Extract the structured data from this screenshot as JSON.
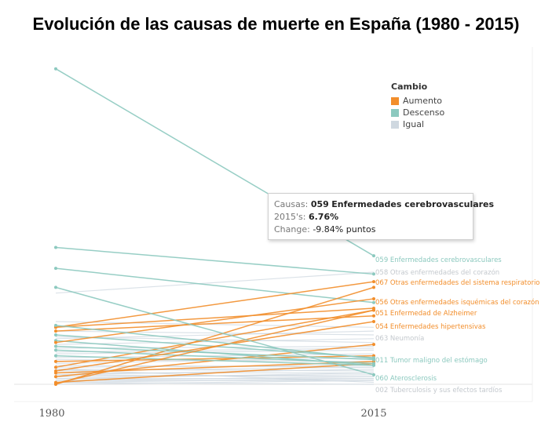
{
  "title": "Evolución de las causas de  muerte en España (1980 - 2015)",
  "legend": {
    "title": "Cambio",
    "items": [
      {
        "label": "Aumento",
        "color": "#f28e2b"
      },
      {
        "label": "Descenso",
        "color": "#8cc9bf"
      },
      {
        "label": "Igual",
        "color": "#cfd8e0"
      }
    ]
  },
  "tooltip": {
    "cause_label": "Causas:",
    "cause_code": "059",
    "cause_name": "Enfermedades cerebrovasculares",
    "value_label": "2015's:",
    "value": "6.76%",
    "change_label": "Change:",
    "change": "-9.84% puntos"
  },
  "chart_data": {
    "type": "line",
    "x": [
      "1980",
      "2015"
    ],
    "ylim": [
      0,
      17
    ],
    "grid": false,
    "legend_position": "top-right",
    "series": [
      {
        "name": "059 Enfermedades cerebrovasculares",
        "values": [
          16.6,
          6.76
        ],
        "change": "Descenso",
        "label_2015": "059  Enfermedades cerebrovasculares"
      },
      {
        "name": "058 Otras enfermedades del corazón",
        "values": [
          4.8,
          5.9
        ],
        "change": "Igual",
        "label_2015": "058  Otras enfermedades del corazón"
      },
      {
        "name": "067 Otras enfermedades del sistema respiratorio",
        "values": [
          3.0,
          5.4
        ],
        "change": "Aumento",
        "label_2015": "067  Otras enfermedades del sistema respiratorio"
      },
      {
        "name": "056 Otras enfermedades isquémicas del corazón",
        "values": [
          2.2,
          4.5
        ],
        "change": "Aumento",
        "label_2015": "056  Otras enfermedades isquémicas del corazón"
      },
      {
        "name": "051 Enfermedad de Alzheimer",
        "values": [
          0.05,
          3.9
        ],
        "change": "Aumento",
        "label_2015": "051  Enfermedad de Alzheimer"
      },
      {
        "name": "054 Enfermedades hipertensivas",
        "values": [
          0.7,
          3.3
        ],
        "change": "Aumento",
        "label_2015": "054  Enfermedades hipertensivas"
      },
      {
        "name": "063 Neumonía",
        "values": [
          2.4,
          2.8
        ],
        "change": "Igual",
        "label_2015": "063  Neumonía"
      },
      {
        "name": "011 Tumor maligno del estómago",
        "values": [
          3.1,
          1.35
        ],
        "change": "Descenso",
        "label_2015": "011  Tumor maligno del estómago"
      },
      {
        "name": "060 Aterosclerosis",
        "values": [
          5.1,
          0.5
        ],
        "change": "Descenso",
        "label_2015": "060  Aterosclerosis"
      },
      {
        "name": "002 Tuberculosis y sus efectos tardíos",
        "values": [
          0.8,
          0.1
        ],
        "change": "Igual",
        "label_2015": "002  Tuberculosis y sus efectos tardíos"
      }
    ],
    "other_lines": [
      {
        "values": [
          7.2,
          5.8
        ],
        "change": "Descenso"
      },
      {
        "values": [
          6.1,
          4.3
        ],
        "change": "Descenso"
      },
      {
        "values": [
          3.0,
          4.0
        ],
        "change": "Aumento"
      },
      {
        "values": [
          2.8,
          3.6
        ],
        "change": "Aumento"
      },
      {
        "values": [
          0.9,
          3.9
        ],
        "change": "Aumento"
      },
      {
        "values": [
          0.4,
          2.1
        ],
        "change": "Aumento"
      },
      {
        "values": [
          1.2,
          1.5
        ],
        "change": "Aumento"
      },
      {
        "values": [
          0.1,
          1.1
        ],
        "change": "Aumento"
      },
      {
        "values": [
          0.0,
          5.1
        ],
        "change": "Aumento"
      },
      {
        "values": [
          0.6,
          1.2
        ],
        "change": "Aumento"
      },
      {
        "values": [
          2.3,
          1.0
        ],
        "change": "Descenso"
      },
      {
        "values": [
          2.0,
          1.3
        ],
        "change": "Descenso"
      },
      {
        "values": [
          1.8,
          1.1
        ],
        "change": "Descenso"
      },
      {
        "values": [
          2.6,
          1.4
        ],
        "change": "Descenso"
      },
      {
        "values": [
          1.5,
          1.0
        ],
        "change": "Descenso"
      },
      {
        "values": [
          2.8,
          2.6
        ],
        "change": "Igual"
      },
      {
        "values": [
          2.5,
          2.2
        ],
        "change": "Igual"
      },
      {
        "values": [
          1.7,
          1.9
        ],
        "change": "Igual"
      },
      {
        "values": [
          1.4,
          1.6
        ],
        "change": "Igual"
      },
      {
        "values": [
          1.3,
          1.2
        ],
        "change": "Igual"
      },
      {
        "values": [
          1.1,
          1.4
        ],
        "change": "Igual"
      },
      {
        "values": [
          1.0,
          0.9
        ],
        "change": "Igual"
      },
      {
        "values": [
          0.9,
          1.0
        ],
        "change": "Igual"
      },
      {
        "values": [
          0.8,
          0.7
        ],
        "change": "Igual"
      },
      {
        "values": [
          0.7,
          0.9
        ],
        "change": "Igual"
      },
      {
        "values": [
          0.6,
          0.6
        ],
        "change": "Igual"
      },
      {
        "values": [
          0.5,
          0.8
        ],
        "change": "Igual"
      },
      {
        "values": [
          0.5,
          0.4
        ],
        "change": "Igual"
      },
      {
        "values": [
          0.4,
          0.5
        ],
        "change": "Igual"
      },
      {
        "values": [
          0.3,
          0.3
        ],
        "change": "Igual"
      },
      {
        "values": [
          0.3,
          0.6
        ],
        "change": "Igual"
      },
      {
        "values": [
          0.2,
          0.2
        ],
        "change": "Igual"
      },
      {
        "values": [
          0.2,
          0.4
        ],
        "change": "Igual"
      },
      {
        "values": [
          0.1,
          0.3
        ],
        "change": "Igual"
      },
      {
        "values": [
          0.1,
          0.0
        ],
        "change": "Igual"
      },
      {
        "values": [
          0.0,
          0.2
        ],
        "change": "Igual"
      },
      {
        "values": [
          2.1,
          2.4
        ],
        "change": "Igual"
      },
      {
        "values": [
          1.9,
          2.0
        ],
        "change": "Igual"
      },
      {
        "values": [
          1.6,
          1.8
        ],
        "change": "Igual"
      },
      {
        "values": [
          3.3,
          3.0
        ],
        "change": "Igual"
      }
    ]
  }
}
